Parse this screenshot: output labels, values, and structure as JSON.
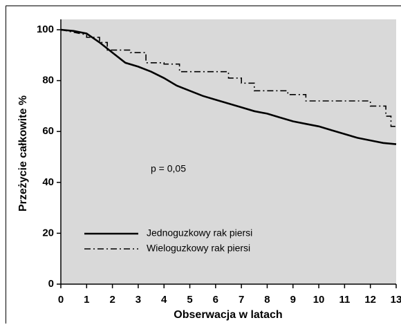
{
  "chart_data": {
    "type": "line",
    "x_label": "Obserwacja w latach",
    "y_label": "Przeżycie całkowite %",
    "annotation": "p = 0,05",
    "xlim": [
      0,
      13
    ],
    "xticks": [
      0,
      1,
      2,
      3,
      4,
      5,
      6,
      7,
      8,
      9,
      10,
      11,
      12,
      13
    ],
    "ylim": [
      0,
      100
    ],
    "yticks": [
      0,
      20,
      40,
      60,
      80,
      100
    ],
    "background": "#d9d9d9",
    "legend": "lower-left",
    "series": [
      {
        "name": "Jednoguzkowy rak piersi",
        "color": "#000000",
        "dash": "solid",
        "x": [
          0,
          0.5,
          1,
          1.5,
          2,
          2.5,
          3,
          3.5,
          4,
          4.5,
          5,
          5.5,
          6,
          6.5,
          7,
          7.5,
          8,
          8.5,
          9,
          9.5,
          10,
          10.5,
          11,
          11.5,
          12,
          12.5,
          13
        ],
        "values": [
          100,
          99.5,
          98.5,
          95,
          91,
          87,
          85.5,
          83.5,
          81,
          78,
          76,
          74,
          72.5,
          71,
          69.5,
          68,
          67,
          65.5,
          64,
          63,
          62,
          60.5,
          59,
          57.5,
          56.5,
          55.5,
          55
        ]
      },
      {
        "name": "Wieloguzkowy rak piersi",
        "color": "#000000",
        "dash": "dashdot",
        "x": [
          0,
          1,
          1,
          1.5,
          1.5,
          1.8,
          1.8,
          2.7,
          2.7,
          3.3,
          3.3,
          4,
          4,
          4.6,
          4.6,
          6.5,
          6.5,
          7,
          7,
          7.5,
          7.5,
          8.8,
          8.8,
          9.5,
          9.5,
          12,
          12,
          12.6,
          12.6,
          12.8,
          12.8,
          13
        ],
        "values": [
          100,
          98,
          97,
          97,
          95,
          95,
          92,
          92,
          91,
          91,
          87,
          87,
          86.5,
          86.5,
          83.5,
          83.5,
          81,
          81,
          79,
          79,
          76,
          76,
          74.5,
          74.5,
          72,
          72,
          70,
          70,
          66,
          66,
          62,
          62
        ]
      }
    ]
  }
}
